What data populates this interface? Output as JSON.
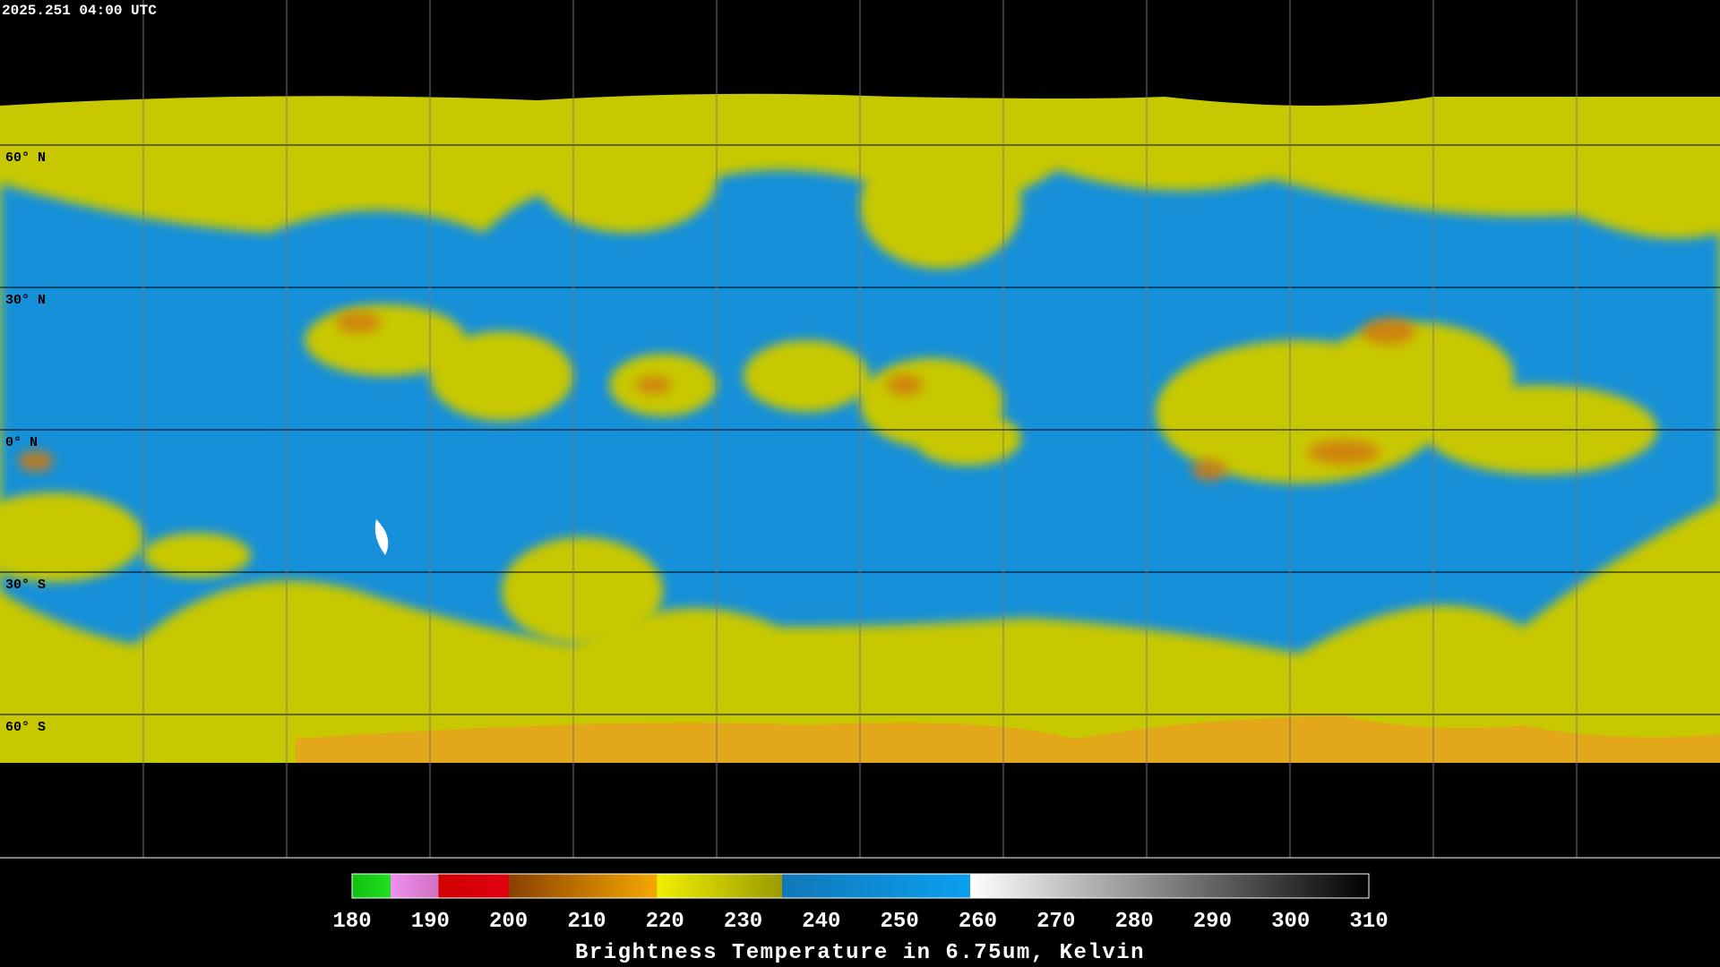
{
  "timestamp": "2025.251 04:00 UTC",
  "map": {
    "latitude_labels": [
      "60° N",
      "30° N",
      "0° N",
      "30° S",
      "60° S"
    ]
  },
  "colorbar": {
    "range": [
      180,
      310
    ],
    "ticks": [
      180,
      190,
      200,
      210,
      220,
      230,
      240,
      250,
      260,
      270,
      280,
      290,
      300,
      310
    ],
    "title": "Brightness Temperature in 6.75um, Kelvin"
  }
}
